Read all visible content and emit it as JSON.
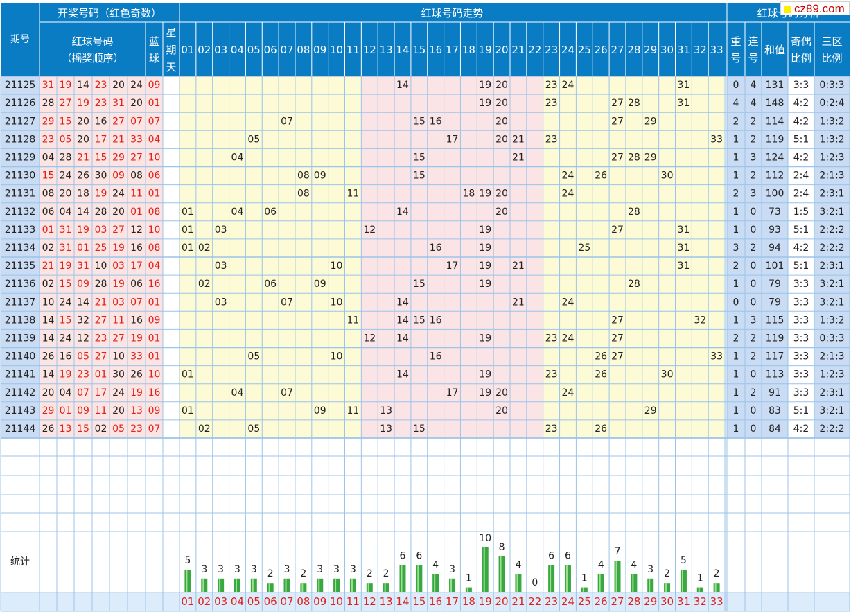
{
  "header": {
    "issue_col": "期号",
    "draw_group": "开奖号码（红色奇数）",
    "red_col_line1": "红球号码",
    "red_col_line2": "（摇奖顺序）",
    "blue_col": [
      "蓝",
      "球"
    ],
    "weekday_col": [
      "星",
      "期",
      "天"
    ],
    "trend_group": "红球号码走势",
    "analysis_group": "红球号码分析",
    "repeat_col": [
      "重",
      "号"
    ],
    "consec_col": [
      "连",
      "号"
    ],
    "sum_col": "和值",
    "oddeven_col": [
      "奇偶",
      "比例"
    ],
    "zone_col": [
      "三区",
      "比例"
    ],
    "numbers": [
      "01",
      "02",
      "03",
      "04",
      "05",
      "06",
      "07",
      "08",
      "09",
      "10",
      "11",
      "12",
      "13",
      "14",
      "15",
      "16",
      "17",
      "18",
      "19",
      "20",
      "21",
      "22",
      "23",
      "24",
      "25",
      "26",
      "27",
      "28",
      "29",
      "30",
      "31",
      "32",
      "33"
    ]
  },
  "rows": [
    {
      "issue": "21125",
      "reds": [
        "31",
        "19",
        "14",
        "23",
        "20",
        "24"
      ],
      "blue": "09",
      "repeat": "0",
      "consec": "4",
      "sum": "131",
      "oe": "3:3",
      "zone": "0:3:3"
    },
    {
      "issue": "21126",
      "reds": [
        "28",
        "27",
        "19",
        "23",
        "31",
        "20"
      ],
      "blue": "01",
      "repeat": "4",
      "consec": "4",
      "sum": "148",
      "oe": "4:2",
      "zone": "0:2:4"
    },
    {
      "issue": "21127",
      "reds": [
        "29",
        "15",
        "20",
        "16",
        "27",
        "07"
      ],
      "blue": "07",
      "repeat": "2",
      "consec": "2",
      "sum": "114",
      "oe": "4:2",
      "zone": "1:3:2"
    },
    {
      "issue": "21128",
      "reds": [
        "23",
        "05",
        "20",
        "17",
        "21",
        "33"
      ],
      "blue": "04",
      "repeat": "1",
      "consec": "2",
      "sum": "119",
      "oe": "5:1",
      "zone": "1:3:2"
    },
    {
      "issue": "21129",
      "reds": [
        "04",
        "28",
        "21",
        "15",
        "29",
        "27"
      ],
      "blue": "10",
      "repeat": "1",
      "consec": "3",
      "sum": "124",
      "oe": "4:2",
      "zone": "1:2:3"
    },
    {
      "issue": "21130",
      "reds": [
        "15",
        "24",
        "26",
        "30",
        "09",
        "08"
      ],
      "blue": "06",
      "repeat": "1",
      "consec": "2",
      "sum": "112",
      "oe": "2:4",
      "zone": "2:1:3"
    },
    {
      "issue": "21131",
      "reds": [
        "08",
        "20",
        "18",
        "19",
        "24",
        "11"
      ],
      "blue": "01",
      "repeat": "2",
      "consec": "3",
      "sum": "100",
      "oe": "2:4",
      "zone": "2:3:1"
    },
    {
      "issue": "21132",
      "reds": [
        "06",
        "04",
        "14",
        "28",
        "20",
        "01"
      ],
      "blue": "08",
      "repeat": "1",
      "consec": "0",
      "sum": "73",
      "oe": "1:5",
      "zone": "3:2:1"
    },
    {
      "issue": "21133",
      "reds": [
        "01",
        "31",
        "19",
        "03",
        "27",
        "12"
      ],
      "blue": "10",
      "repeat": "1",
      "consec": "0",
      "sum": "93",
      "oe": "5:1",
      "zone": "2:2:2"
    },
    {
      "issue": "21134",
      "reds": [
        "02",
        "31",
        "01",
        "25",
        "19",
        "16"
      ],
      "blue": "08",
      "repeat": "3",
      "consec": "2",
      "sum": "94",
      "oe": "4:2",
      "zone": "2:2:2"
    },
    {
      "issue": "21135",
      "reds": [
        "21",
        "19",
        "31",
        "10",
        "03",
        "17"
      ],
      "blue": "04",
      "repeat": "2",
      "consec": "0",
      "sum": "101",
      "oe": "5:1",
      "zone": "2:3:1"
    },
    {
      "issue": "21136",
      "reds": [
        "02",
        "15",
        "09",
        "28",
        "19",
        "06"
      ],
      "blue": "16",
      "repeat": "1",
      "consec": "0",
      "sum": "79",
      "oe": "3:3",
      "zone": "3:2:1"
    },
    {
      "issue": "21137",
      "reds": [
        "10",
        "24",
        "14",
        "21",
        "03",
        "07"
      ],
      "blue": "01",
      "repeat": "0",
      "consec": "0",
      "sum": "79",
      "oe": "3:3",
      "zone": "3:2:1"
    },
    {
      "issue": "21138",
      "reds": [
        "14",
        "15",
        "32",
        "27",
        "11",
        "16"
      ],
      "blue": "09",
      "repeat": "1",
      "consec": "3",
      "sum": "115",
      "oe": "3:3",
      "zone": "1:3:2"
    },
    {
      "issue": "21139",
      "reds": [
        "14",
        "24",
        "12",
        "23",
        "27",
        "19"
      ],
      "blue": "01",
      "repeat": "2",
      "consec": "2",
      "sum": "119",
      "oe": "3:3",
      "zone": "0:3:3"
    },
    {
      "issue": "21140",
      "reds": [
        "26",
        "16",
        "05",
        "27",
        "10",
        "33"
      ],
      "blue": "01",
      "repeat": "1",
      "consec": "2",
      "sum": "117",
      "oe": "3:3",
      "zone": "2:1:3"
    },
    {
      "issue": "21141",
      "reds": [
        "14",
        "19",
        "23",
        "01",
        "30",
        "26"
      ],
      "blue": "10",
      "repeat": "1",
      "consec": "0",
      "sum": "113",
      "oe": "3:3",
      "zone": "1:2:3"
    },
    {
      "issue": "21142",
      "reds": [
        "20",
        "04",
        "07",
        "17",
        "24",
        "19"
      ],
      "blue": "16",
      "repeat": "1",
      "consec": "2",
      "sum": "91",
      "oe": "3:3",
      "zone": "2:3:1"
    },
    {
      "issue": "21143",
      "reds": [
        "29",
        "01",
        "09",
        "11",
        "20",
        "13"
      ],
      "blue": "09",
      "repeat": "1",
      "consec": "0",
      "sum": "83",
      "oe": "5:1",
      "zone": "3:2:1"
    },
    {
      "issue": "21144",
      "reds": [
        "26",
        "13",
        "15",
        "02",
        "05",
        "23"
      ],
      "blue": "07",
      "repeat": "1",
      "consec": "0",
      "sum": "84",
      "oe": "4:2",
      "zone": "2:2:2"
    }
  ],
  "stats_label": "统计",
  "colors": {
    "header_bg": "#0a7cc4",
    "header_line": "#ffffff",
    "id_bg": "#c9dcf3",
    "draw_bg": "#fbe4e1",
    "odd_red": "#e0201c",
    "even_black": "#222222",
    "yellow_zone": "#fdfbd6",
    "pink_zone": "#fbe4e6",
    "grid": "#9cc4ea",
    "bar_green": "#39a843",
    "footer_bg": "#ddecfa",
    "footer_text": "#e0201c"
  },
  "chart_data": {
    "type": "bar",
    "title": "统计",
    "categories": [
      "01",
      "02",
      "03",
      "04",
      "05",
      "06",
      "07",
      "08",
      "09",
      "10",
      "11",
      "12",
      "13",
      "14",
      "15",
      "16",
      "17",
      "18",
      "19",
      "20",
      "21",
      "22",
      "23",
      "24",
      "25",
      "26",
      "27",
      "28",
      "29",
      "30",
      "31",
      "32",
      "33"
    ],
    "values": [
      5,
      3,
      3,
      3,
      3,
      2,
      3,
      2,
      3,
      3,
      3,
      2,
      2,
      6,
      6,
      4,
      3,
      1,
      10,
      8,
      4,
      0,
      6,
      6,
      1,
      4,
      7,
      4,
      3,
      2,
      5,
      1,
      2
    ],
    "ylim": [
      0,
      10
    ],
    "xlabel": "",
    "ylabel": "",
    "grid": true,
    "bar_color": "#39a843"
  },
  "watermark": "cz89.com"
}
